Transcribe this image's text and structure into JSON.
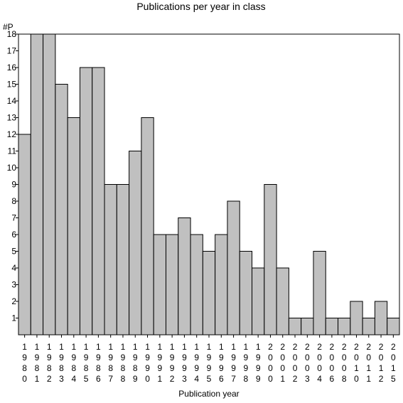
{
  "chart_data": {
    "type": "bar",
    "title": "Publications per year in class",
    "ylabel": "#P",
    "xlabel": "Publication year",
    "ylim": [
      0,
      18
    ],
    "yticks": [
      1,
      2,
      3,
      4,
      5,
      6,
      7,
      8,
      9,
      10,
      11,
      12,
      13,
      14,
      15,
      16,
      17,
      18
    ],
    "grid": false,
    "categories": [
      "1980",
      "1981",
      "1982",
      "1983",
      "1984",
      "1985",
      "1986",
      "1987",
      "1988",
      "1989",
      "1990",
      "1991",
      "1992",
      "1993",
      "1994",
      "1995",
      "1996",
      "1997",
      "1998",
      "1999",
      "2000",
      "2001",
      "2002",
      "2003",
      "2004",
      "2006",
      "2008",
      "2010",
      "2011",
      "2012",
      "2015"
    ],
    "values": [
      12,
      18,
      18,
      15,
      13,
      16,
      16,
      9,
      9,
      11,
      13,
      6,
      6,
      7,
      6,
      5,
      6,
      8,
      5,
      4,
      9,
      4,
      1,
      1,
      5,
      1,
      1,
      2,
      1,
      2,
      1
    ],
    "colors": {
      "bar_fill": "#c0c0c0",
      "bar_stroke": "#000000",
      "background": "#ffffff"
    }
  }
}
